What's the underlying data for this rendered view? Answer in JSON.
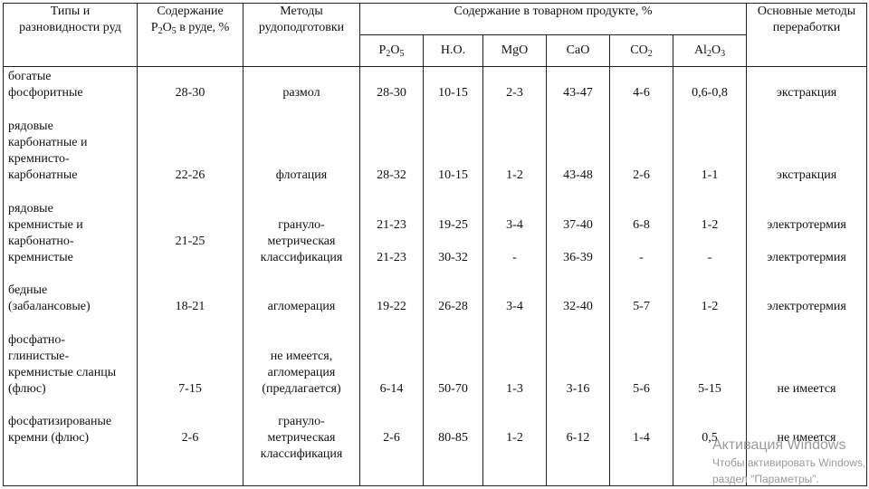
{
  "table": {
    "headers": {
      "types": [
        "Типы и",
        "разновидности руд"
      ],
      "content_prefix": "Содержание",
      "content_p": "P",
      "content_sub1": "2",
      "content_o": "O",
      "content_sub2": "5",
      "content_suffix": " в руде, %",
      "prep": [
        "Методы",
        "рудоподготовки"
      ],
      "product": "Содержание в товарном продукте, %",
      "processing": [
        "Основные методы",
        "переработки"
      ]
    },
    "subheaders": {
      "p2o5": {
        "base1": "P",
        "s1": "2",
        "base2": "O",
        "s2": "5"
      },
      "no": "Н.О.",
      "mgo": "MgO",
      "cao": "CaO",
      "co2": {
        "base": "CO",
        "s": "2"
      },
      "al2o3": {
        "base1": "Al",
        "s1": "2",
        "base2": "O",
        "s2": "3"
      }
    },
    "rows": [
      {
        "type_lines": [
          "богатые",
          "фосфоритные"
        ],
        "content": "28-30",
        "prep_lines": [
          "размол"
        ],
        "p2o5": [
          "28-30"
        ],
        "no": [
          "10-15"
        ],
        "mgo": [
          "2-3"
        ],
        "cao": [
          "43-47"
        ],
        "co2": [
          "4-6"
        ],
        "al2o3": [
          "0,6-0,8"
        ],
        "method": [
          "экстракция"
        ]
      },
      {
        "type_lines": [
          "рядовые",
          "карбонатные и",
          "кремнисто-",
          "карбонатные"
        ],
        "content": "22-26",
        "prep_lines": [
          "флотация"
        ],
        "p2o5": [
          "28-32"
        ],
        "no": [
          "10-15"
        ],
        "mgo": [
          "1-2"
        ],
        "cao": [
          "43-48"
        ],
        "co2": [
          "2-6"
        ],
        "al2o3": [
          "1-1"
        ],
        "method": [
          "экстракция"
        ]
      },
      {
        "type_lines": [
          "рядовые",
          "кремнистые и",
          "карбонатно-",
          "кремнистые"
        ],
        "content": "21-25",
        "prep_lines": [
          "грануло-",
          "метрическая",
          "классификация"
        ],
        "p2o5": [
          "21-23",
          "21-23"
        ],
        "no": [
          "19-25",
          "30-32"
        ],
        "mgo": [
          "3-4",
          "-"
        ],
        "cao": [
          "37-40",
          "36-39"
        ],
        "co2": [
          "6-8",
          "-"
        ],
        "al2o3": [
          "1-2",
          "-"
        ],
        "method": [
          "электротермия",
          "электротермия"
        ]
      },
      {
        "type_lines": [
          "бедные",
          "(забалансовые)"
        ],
        "content": "18-21",
        "prep_lines": [
          "агломерация"
        ],
        "p2o5": [
          "19-22"
        ],
        "no": [
          "26-28"
        ],
        "mgo": [
          "3-4"
        ],
        "cao": [
          "32-40"
        ],
        "co2": [
          "5-7"
        ],
        "al2o3": [
          "1-2"
        ],
        "method": [
          "электротермия"
        ]
      },
      {
        "type_lines": [
          "фосфатно-",
          "глинистые-",
          "кремнистые сланцы",
          "(флюс)"
        ],
        "content": "7-15",
        "prep_lines": [
          "не имеется,",
          "агломерация",
          "(предлагается)"
        ],
        "p2o5": [
          "6-14"
        ],
        "no": [
          "50-70"
        ],
        "mgo": [
          "1-3"
        ],
        "cao": [
          "3-16"
        ],
        "co2": [
          "5-6"
        ],
        "al2o3": [
          "5-15"
        ],
        "method": [
          "не имеется"
        ]
      },
      {
        "type_lines": [
          "фосфатизированые",
          "кремни (флюс)"
        ],
        "content": "2-6",
        "prep_lines": [
          "грануло-",
          "метрическая",
          "классификация"
        ],
        "p2o5": [
          "2-6"
        ],
        "no": [
          "80-85"
        ],
        "mgo": [
          "1-2"
        ],
        "cao": [
          "6-12"
        ],
        "co2": [
          "1-4"
        ],
        "al2o3": [
          "0,5"
        ],
        "method": [
          "не имеется"
        ]
      }
    ]
  },
  "watermark": {
    "line1": "Активация Windows",
    "line2": "Чтобы активировать Windows,",
    "line3": "раздел \"Параметры\"."
  }
}
